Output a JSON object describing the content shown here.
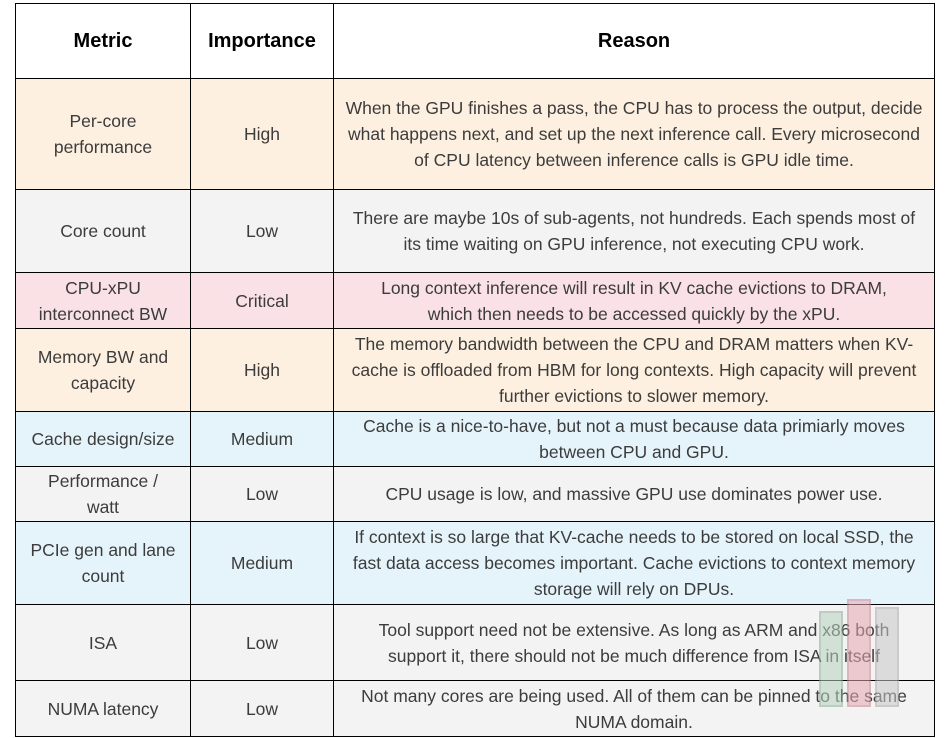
{
  "table": {
    "headers": [
      "Metric",
      "Importance",
      "Reason"
    ],
    "rows": [
      {
        "metric": "Per-core performance",
        "importance": "High",
        "reason": "When the GPU finishes a pass, the CPU has to process the output, decide what happens next, and set up the next inference call. Every microsecond of CPU latency between inference calls is GPU idle time.",
        "color": "#fdf0e0"
      },
      {
        "metric": "Core count",
        "importance": "Low",
        "reason": "There are maybe 10s of sub-agents, not hundreds. Each spends most of its time waiting on GPU inference, not executing CPU work.",
        "color": "#f3f3f3"
      },
      {
        "metric": "CPU-xPU interconnect BW",
        "importance": "Critical",
        "reason": "Long context inference will result in KV cache evictions to DRAM, which then needs to be accessed quickly by the xPU.",
        "color": "#f9e1e6"
      },
      {
        "metric": "Memory BW and capacity",
        "importance": "High",
        "reason": "The memory bandwidth between the CPU and DRAM matters when KV-cache is offloaded from HBM for long contexts. High capacity will prevent further evictions to slower memory.",
        "color": "#fdf0e0"
      },
      {
        "metric": "Cache design/size",
        "importance": "Medium",
        "reason": "Cache is a nice-to-have, but not a must because data primiarly moves between CPU and GPU.",
        "color": "#e5f3fb"
      },
      {
        "metric": "Performance / watt",
        "importance": "Low",
        "reason": "CPU usage is low, and massive GPU use dominates power use.",
        "color": "#f3f3f3"
      },
      {
        "metric": "PCIe gen and lane count",
        "importance": "Medium",
        "reason": "If context is so large that KV-cache needs to be stored on local SSD, the fast data access becomes important. Cache evictions to context memory storage will rely on DPUs.",
        "color": "#e5f3fb"
      },
      {
        "metric": "ISA",
        "importance": "Low",
        "reason": "Tool support need not be extensive. As long as ARM and x86 both support it, there should not be much difference from ISA in itself",
        "color": "#f3f3f3"
      },
      {
        "metric": "NUMA latency",
        "importance": "Low",
        "reason": "Not many cores are being used. All of them can be pinned to the same NUMA domain.",
        "color": "#f3f3f3"
      }
    ]
  },
  "watermark": {
    "icon": "chart-logo-icon",
    "colors": [
      "#b8d3c0",
      "#e3a9b3",
      "#c9c9c9"
    ]
  }
}
